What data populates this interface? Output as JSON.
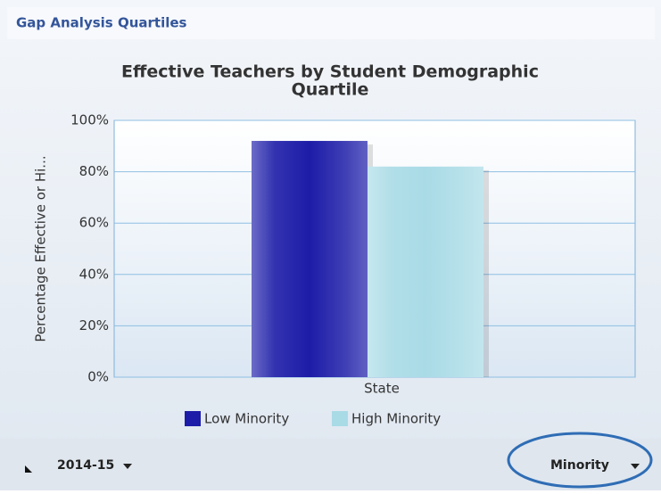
{
  "panel_title": "Gap Analysis Quartiles",
  "chart_data": {
    "type": "bar",
    "title": "Effective Teachers by Student Demographic",
    "title_line2": "Quartile",
    "y_label": "Percentage Effective or Hi...",
    "categories": [
      "State"
    ],
    "series": [
      {
        "name": "Low Minority",
        "color": "#1c1ca8",
        "values": [
          92
        ]
      },
      {
        "name": "High Minority",
        "color": "#a9dbe6",
        "values": [
          82
        ]
      }
    ],
    "ylim": [
      0,
      100
    ],
    "yticks": [
      {
        "value": 0,
        "label": "0%"
      },
      {
        "value": 20,
        "label": "20%"
      },
      {
        "value": 40,
        "label": "40%"
      },
      {
        "value": 60,
        "label": "60%"
      },
      {
        "value": 80,
        "label": "80%"
      },
      {
        "value": 100,
        "label": "100%"
      }
    ],
    "grid": true
  },
  "footer": {
    "year": "2014-15",
    "filter": "Minority"
  }
}
